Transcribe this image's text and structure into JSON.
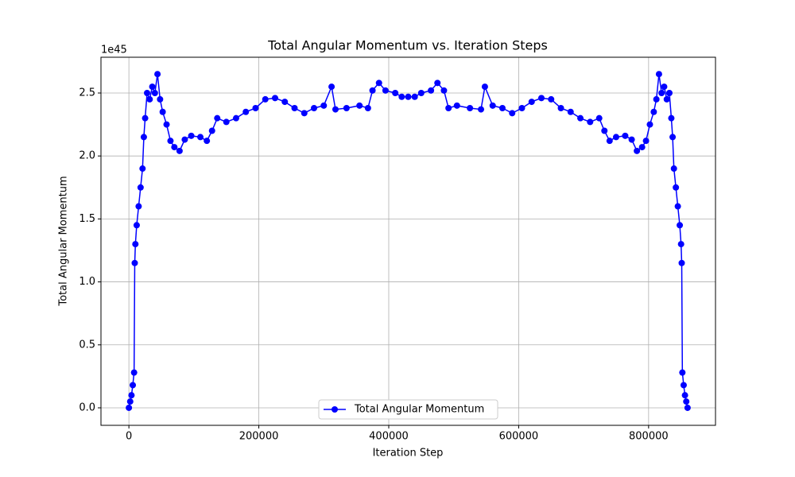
{
  "chart_data": {
    "type": "line",
    "title": "Total Angular Momentum vs. Iteration Steps",
    "x_label": "Iteration Step",
    "y_label": "Total Angular Momentum",
    "y_offset_label": "1e45",
    "xlim": [
      -43000,
      903000
    ],
    "ylim": [
      -0.139,
      2.784
    ],
    "xticks": [
      0,
      200000,
      400000,
      600000,
      800000
    ],
    "yticks": [
      {
        "value": 0,
        "label": "0.0"
      },
      {
        "value": 0.5,
        "label": "0.5"
      },
      {
        "value": 1,
        "label": "1.0"
      },
      {
        "value": 1.5,
        "label": "1.5"
      },
      {
        "value": 2,
        "label": "2.0"
      },
      {
        "value": 2.5,
        "label": "2.5"
      }
    ],
    "grid": true,
    "legend": "lower center",
    "x": [
      0,
      2000,
      4000,
      6000,
      8000,
      9000,
      10000,
      12000,
      15000,
      18000,
      21000,
      23000,
      25000,
      28000,
      32000,
      36000,
      40000,
      44000,
      48000,
      52000,
      58000,
      64000,
      70000,
      78000,
      86000,
      96000,
      110000,
      120000,
      128000,
      136000,
      150000,
      165000,
      180000,
      195000,
      210000,
      225000,
      240000,
      255000,
      270000,
      285000,
      300000,
      312000,
      318000,
      335000,
      355000,
      368000,
      375000,
      385000,
      395000,
      410000,
      420000,
      430000,
      440000,
      450000,
      465000,
      475000,
      485000,
      492000,
      505000,
      525000,
      542000,
      548000,
      560000,
      575000,
      590000,
      605000,
      620000,
      635000,
      650000,
      665000,
      680000,
      695000,
      710000,
      724000,
      732000,
      740000,
      750000,
      764000,
      774000,
      782000,
      790000,
      796000,
      802000,
      808000,
      812000,
      816000,
      820000,
      824000,
      828000,
      832000,
      835000,
      837000,
      839000,
      842000,
      845000,
      848000,
      850000,
      851000,
      852000,
      854000,
      856000,
      858000,
      860000
    ],
    "series": [
      {
        "name": "Total Angular Momentum",
        "color": "#0000ff",
        "values": [
          0.0,
          0.05,
          0.1,
          0.18,
          0.28,
          1.15,
          1.3,
          1.45,
          1.6,
          1.75,
          1.9,
          2.15,
          2.3,
          2.5,
          2.45,
          2.55,
          2.5,
          2.65,
          2.45,
          2.35,
          2.25,
          2.12,
          2.07,
          2.04,
          2.13,
          2.16,
          2.15,
          2.12,
          2.2,
          2.3,
          2.27,
          2.3,
          2.35,
          2.38,
          2.45,
          2.46,
          2.43,
          2.38,
          2.34,
          2.38,
          2.4,
          2.55,
          2.37,
          2.38,
          2.4,
          2.38,
          2.52,
          2.58,
          2.52,
          2.5,
          2.47,
          2.47,
          2.47,
          2.5,
          2.52,
          2.58,
          2.52,
          2.38,
          2.4,
          2.38,
          2.37,
          2.55,
          2.4,
          2.38,
          2.34,
          2.38,
          2.43,
          2.46,
          2.45,
          2.38,
          2.35,
          2.3,
          2.27,
          2.3,
          2.2,
          2.12,
          2.15,
          2.16,
          2.13,
          2.04,
          2.07,
          2.12,
          2.25,
          2.35,
          2.45,
          2.65,
          2.5,
          2.55,
          2.45,
          2.5,
          2.3,
          2.15,
          1.9,
          1.75,
          1.6,
          1.45,
          1.3,
          1.15,
          0.28,
          0.18,
          0.1,
          0.05,
          0.0
        ]
      }
    ]
  }
}
